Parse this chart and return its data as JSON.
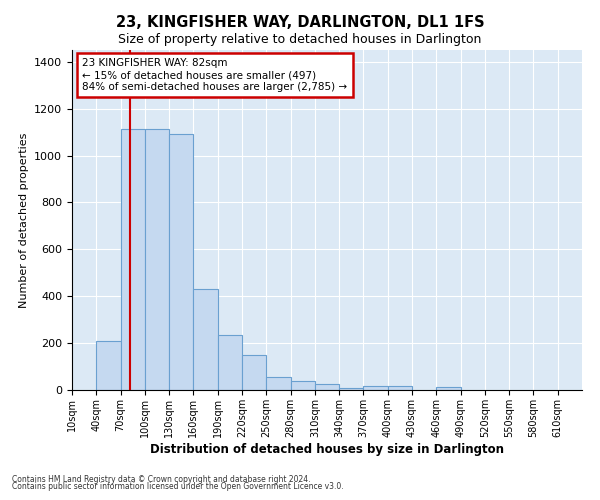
{
  "title": "23, KINGFISHER WAY, DARLINGTON, DL1 1FS",
  "subtitle": "Size of property relative to detached houses in Darlington",
  "xlabel": "Distribution of detached houses by size in Darlington",
  "ylabel": "Number of detached properties",
  "bar_color": "#c5d9f0",
  "bar_edge_color": "#6aa0d0",
  "background_color": "#dce9f5",
  "grid_color": "#ffffff",
  "red_line_x": 82,
  "annotation_line1": "23 KINGFISHER WAY: 82sqm",
  "annotation_line2": "← 15% of detached houses are smaller (497)",
  "annotation_line3": "84% of semi-detached houses are larger (2,785) →",
  "annotation_box_color": "#ffffff",
  "annotation_border_color": "#cc0000",
  "categories": [
    "10sqm",
    "40sqm",
    "70sqm",
    "100sqm",
    "130sqm",
    "160sqm",
    "190sqm",
    "220sqm",
    "250sqm",
    "280sqm",
    "310sqm",
    "340sqm",
    "370sqm",
    "400sqm",
    "430sqm",
    "460sqm",
    "490sqm",
    "520sqm",
    "550sqm",
    "580sqm",
    "610sqm"
  ],
  "bin_starts": [
    10,
    40,
    70,
    100,
    130,
    160,
    190,
    220,
    250,
    280,
    310,
    340,
    370,
    400,
    430,
    460,
    490,
    520,
    550,
    580,
    610
  ],
  "values": [
    0,
    210,
    1115,
    1115,
    1090,
    430,
    235,
    150,
    57,
    38,
    25,
    10,
    15,
    15,
    0,
    12,
    0,
    0,
    0,
    0,
    0
  ],
  "ylim": [
    0,
    1450
  ],
  "fig_width": 6.0,
  "fig_height": 5.0,
  "dpi": 100,
  "footnote1": "Contains HM Land Registry data © Crown copyright and database right 2024.",
  "footnote2": "Contains public sector information licensed under the Open Government Licence v3.0."
}
